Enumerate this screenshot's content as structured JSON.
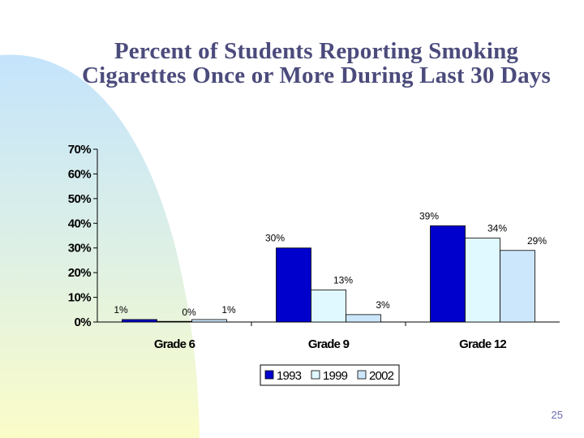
{
  "slide": {
    "title": "Percent of Students Reporting Smoking Cigarettes Once or More During Last 30 Days",
    "page_number": "25"
  },
  "chart_data": {
    "type": "bar",
    "title": "Percent of Students Reporting Smoking Cigarettes Once or More During Last 30 Days",
    "xlabel": "",
    "ylabel": "",
    "categories": [
      "Grade 6",
      "Grade 9",
      "Grade 12"
    ],
    "series": [
      {
        "name": "1993",
        "values": [
          1,
          30,
          39
        ],
        "labels": [
          "1%",
          "30%",
          "39%"
        ],
        "color": "#0000cc"
      },
      {
        "name": "1999",
        "values": [
          0,
          13,
          34
        ],
        "labels": [
          "0%",
          "13%",
          "34%"
        ],
        "color": "#e0f8ff"
      },
      {
        "name": "2002",
        "values": [
          1,
          3,
          29
        ],
        "labels": [
          "1%",
          "3%",
          "29%"
        ],
        "color": "#cce6fb"
      }
    ],
    "ylim": [
      0,
      70
    ],
    "yticks": [
      "0%",
      "10%",
      "20%",
      "30%",
      "40%",
      "50%",
      "60%",
      "70%"
    ],
    "ytick_values": [
      0,
      10,
      20,
      30,
      40,
      50,
      60,
      70
    ],
    "grid": false,
    "legend_position": "bottom"
  }
}
